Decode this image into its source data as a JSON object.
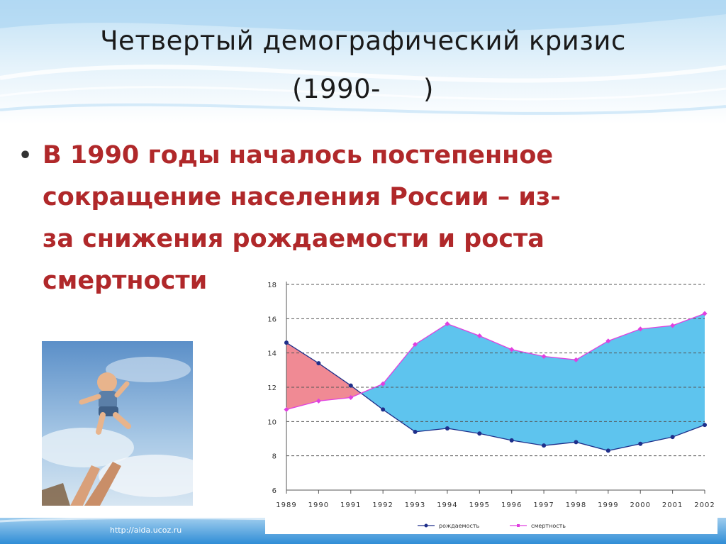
{
  "slide": {
    "title_line1": "Четвертый демографический кризис",
    "title_line2_open": "(1990-",
    "title_line2_close": ")",
    "bullet_lines": [
      "В 1990 годы началось постепенное",
      "сокращение населения России – из-",
      "за снижения рождаемости и роста",
      "смертности"
    ],
    "footer_url": "http://aida.ucoz.ru",
    "accent_color": "#b0282a"
  },
  "photo": {
    "icon": "baby-tossed-in-sky-photo"
  },
  "chart_data": {
    "type": "area",
    "x": [
      1989,
      1990,
      1991,
      1992,
      1993,
      1994,
      1995,
      1996,
      1997,
      1998,
      1999,
      2000,
      2001,
      2002
    ],
    "ylim": [
      6,
      18
    ],
    "yticks": [
      6,
      8,
      10,
      12,
      14,
      16,
      18
    ],
    "grid": true,
    "legend_position": "bottom",
    "series": [
      {
        "name": "рождаемость",
        "color": "#1f2f8a",
        "values": [
          14.6,
          13.4,
          12.1,
          10.7,
          9.4,
          9.6,
          9.3,
          8.9,
          8.6,
          8.8,
          8.3,
          8.7,
          9.1,
          9.8
        ]
      },
      {
        "name": "смертность",
        "color": "#e040e0",
        "values": [
          10.7,
          11.2,
          11.4,
          12.2,
          14.5,
          15.7,
          15.0,
          14.2,
          13.8,
          13.6,
          14.7,
          15.4,
          15.6,
          16.3
        ]
      }
    ],
    "fill_colors": {
      "birth_over_death": "#f08a94",
      "death_over_birth": "#5ec4ee"
    }
  }
}
